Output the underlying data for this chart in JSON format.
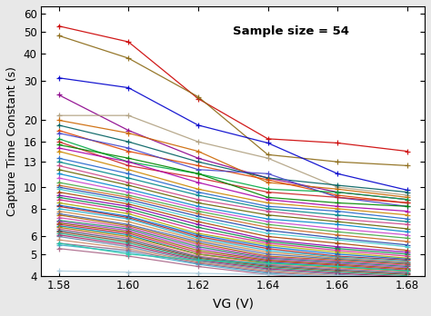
{
  "x_values": [
    1.58,
    1.6,
    1.62,
    1.64,
    1.66,
    1.68
  ],
  "annotation": "Sample size = 54",
  "xlabel": "VG (V)",
  "ylabel": "Capture Time Constant (s)",
  "xlim": [
    1.575,
    1.685
  ],
  "ylim": [
    4,
    65
  ],
  "yticks": [
    4,
    5,
    6,
    8,
    10,
    13,
    16,
    20,
    30,
    40,
    50,
    60
  ],
  "xticks": [
    1.58,
    1.6,
    1.62,
    1.64,
    1.66,
    1.68
  ],
  "background_color": "#e8e8e8",
  "plot_bg": "#ffffff",
  "lines": [
    {
      "y": [
        53.0,
        45.0,
        25.0,
        16.5,
        15.8,
        14.5
      ],
      "color": "#cc0000"
    },
    {
      "y": [
        48.0,
        38.0,
        25.5,
        14.0,
        13.0,
        12.5
      ],
      "color": "#8B6914"
    },
    {
      "y": [
        31.0,
        28.0,
        19.0,
        15.8,
        11.5,
        9.7
      ],
      "color": "#0000cc"
    },
    {
      "y": [
        26.0,
        18.0,
        13.5,
        11.0,
        9.5,
        8.8
      ],
      "color": "#8B008B"
    },
    {
      "y": [
        21.0,
        21.0,
        16.0,
        13.5,
        10.0,
        9.2
      ],
      "color": "#b0a080"
    },
    {
      "y": [
        20.0,
        17.5,
        14.5,
        10.5,
        9.8,
        9.0
      ],
      "color": "#cc6600"
    },
    {
      "y": [
        19.0,
        16.0,
        13.0,
        11.0,
        10.2,
        9.5
      ],
      "color": "#006060"
    },
    {
      "y": [
        18.0,
        14.5,
        12.5,
        10.8,
        9.2,
        8.5
      ],
      "color": "#dd4400"
    },
    {
      "y": [
        17.5,
        15.0,
        12.0,
        11.5,
        9.0,
        8.2
      ],
      "color": "#4444cc"
    },
    {
      "y": [
        16.5,
        13.0,
        11.5,
        9.8,
        9.5,
        8.8
      ],
      "color": "#00aa44"
    },
    {
      "y": [
        16.0,
        12.5,
        11.0,
        9.5,
        9.0,
        8.5
      ],
      "color": "#cc2222"
    },
    {
      "y": [
        15.5,
        13.5,
        11.5,
        9.0,
        8.5,
        8.2
      ],
      "color": "#008800"
    },
    {
      "y": [
        15.0,
        13.0,
        10.5,
        8.8,
        8.2,
        7.8
      ],
      "color": "#aa00aa"
    },
    {
      "y": [
        14.5,
        12.0,
        9.8,
        8.5,
        8.0,
        7.5
      ],
      "color": "#cc8800"
    },
    {
      "y": [
        13.5,
        11.5,
        9.5,
        8.2,
        7.8,
        7.2
      ],
      "color": "#2266cc"
    },
    {
      "y": [
        13.0,
        11.0,
        9.2,
        8.0,
        7.5,
        7.0
      ],
      "color": "#008888"
    },
    {
      "y": [
        12.5,
        10.5,
        8.8,
        7.8,
        7.2,
        6.8
      ],
      "color": "#cc4488"
    },
    {
      "y": [
        12.0,
        10.2,
        8.5,
        7.5,
        7.0,
        6.5
      ],
      "color": "#666600"
    },
    {
      "y": [
        11.5,
        9.8,
        8.2,
        7.2,
        6.8,
        6.3
      ],
      "color": "#0088cc"
    },
    {
      "y": [
        11.0,
        9.5,
        8.0,
        7.0,
        6.5,
        6.1
      ],
      "color": "#cc44cc"
    },
    {
      "y": [
        10.5,
        9.2,
        7.8,
        6.8,
        6.3,
        5.9
      ],
      "color": "#44aa44"
    },
    {
      "y": [
        10.2,
        9.0,
        7.6,
        6.6,
        6.1,
        5.7
      ],
      "color": "#cc6622"
    },
    {
      "y": [
        10.0,
        8.8,
        7.4,
        6.4,
        5.9,
        5.5
      ],
      "color": "#2244aa"
    },
    {
      "y": [
        9.8,
        8.6,
        7.2,
        6.2,
        5.8,
        5.4
      ],
      "color": "#44cccc"
    },
    {
      "y": [
        9.5,
        8.4,
        7.0,
        6.0,
        5.6,
        5.2
      ],
      "color": "#aa4400"
    },
    {
      "y": [
        9.2,
        8.2,
        6.8,
        5.8,
        5.4,
        5.1
      ],
      "color": "#8800aa"
    },
    {
      "y": [
        9.0,
        8.0,
        6.6,
        5.7,
        5.3,
        5.0
      ],
      "color": "#008844"
    },
    {
      "y": [
        8.8,
        7.8,
        6.4,
        5.6,
        5.2,
        4.9
      ],
      "color": "#cc2288"
    },
    {
      "y": [
        8.5,
        7.6,
        6.2,
        5.5,
        5.1,
        4.8
      ],
      "color": "#aaaa00"
    },
    {
      "y": [
        8.3,
        7.4,
        6.1,
        5.4,
        5.0,
        4.75
      ],
      "color": "#0066cc"
    },
    {
      "y": [
        8.2,
        7.3,
        6.0,
        5.3,
        4.9,
        4.7
      ],
      "color": "#aa2222"
    },
    {
      "y": [
        8.0,
        7.2,
        5.9,
        5.2,
        4.85,
        4.65
      ],
      "color": "#22aacc"
    },
    {
      "y": [
        7.8,
        7.0,
        5.8,
        5.1,
        4.8,
        4.6
      ],
      "color": "#cc8844"
    },
    {
      "y": [
        7.6,
        6.8,
        5.7,
        5.0,
        4.75,
        4.55
      ],
      "color": "#4466aa"
    },
    {
      "y": [
        7.5,
        6.7,
        5.6,
        4.9,
        4.7,
        4.5
      ],
      "color": "#aa6600"
    },
    {
      "y": [
        7.3,
        6.6,
        5.5,
        4.85,
        4.65,
        4.45
      ],
      "color": "#cc44aa"
    },
    {
      "y": [
        7.1,
        6.5,
        5.4,
        4.8,
        4.6,
        4.4
      ],
      "color": "#228866"
    },
    {
      "y": [
        7.0,
        6.4,
        5.3,
        4.75,
        4.55,
        4.35
      ],
      "color": "#aa44cc"
    },
    {
      "y": [
        6.9,
        6.3,
        5.2,
        4.7,
        4.5,
        4.3
      ],
      "color": "#886600"
    },
    {
      "y": [
        6.8,
        6.2,
        5.1,
        4.65,
        4.45,
        4.25
      ],
      "color": "#cc2244"
    },
    {
      "y": [
        6.7,
        6.1,
        5.0,
        4.6,
        4.4,
        4.2
      ],
      "color": "#0088aa"
    },
    {
      "y": [
        6.6,
        6.0,
        5.0,
        4.55,
        4.35,
        4.2
      ],
      "color": "#aa8800"
    },
    {
      "y": [
        6.5,
        5.9,
        4.9,
        4.5,
        4.3,
        4.15
      ],
      "color": "#cc6688"
    },
    {
      "y": [
        6.4,
        5.8,
        4.85,
        4.45,
        4.25,
        4.1
      ],
      "color": "#446688"
    },
    {
      "y": [
        6.3,
        5.7,
        4.8,
        4.4,
        4.2,
        4.05
      ],
      "color": "#884422"
    },
    {
      "y": [
        6.2,
        5.6,
        4.75,
        4.35,
        4.15,
        4.0
      ],
      "color": "#22aa88"
    },
    {
      "y": [
        6.1,
        5.5,
        4.7,
        4.3,
        4.1,
        3.95
      ],
      "color": "#aa2266"
    },
    {
      "y": [
        6.0,
        5.4,
        4.65,
        4.25,
        4.05,
        3.9
      ],
      "color": "#6688aa"
    },
    {
      "y": [
        5.8,
        5.3,
        4.6,
        4.2,
        4.0,
        3.85
      ],
      "color": "#cc8866"
    },
    {
      "y": [
        5.6,
        5.2,
        4.55,
        4.15,
        3.95,
        3.8
      ],
      "color": "#886688"
    },
    {
      "y": [
        5.5,
        5.1,
        4.5,
        4.1,
        3.9,
        3.75
      ],
      "color": "#44aacc"
    },
    {
      "y": [
        5.3,
        4.9,
        4.4,
        4.05,
        3.85,
        3.7
      ],
      "color": "#aa6688"
    },
    {
      "y": [
        5.6,
        5.0,
        4.7,
        4.55,
        4.4,
        4.2
      ],
      "color": "#22ccaa"
    },
    {
      "y": [
        4.2,
        4.15,
        4.1,
        4.05,
        4.0,
        3.95
      ],
      "color": "#aaccdd"
    }
  ]
}
